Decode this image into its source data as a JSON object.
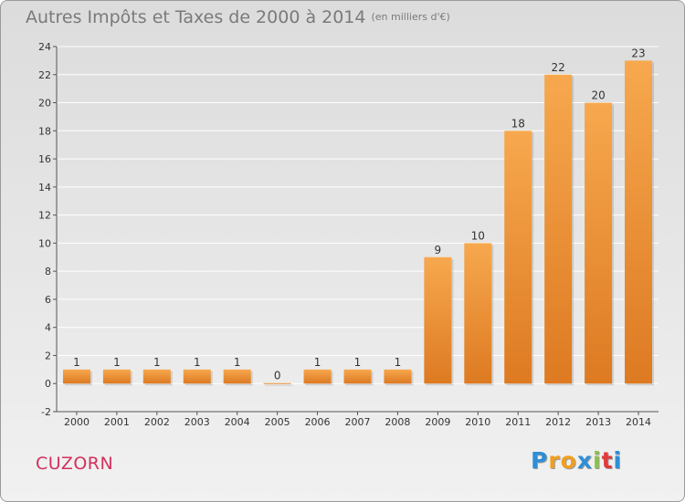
{
  "title": "Autres Impôts et Taxes de 2000 à 2014",
  "title_unit": "(en milliers d'€)",
  "commune": "CUZORN",
  "logo": {
    "letters": [
      "P",
      "r",
      "o",
      "x",
      "i",
      "t",
      "i"
    ],
    "colors": [
      "#2e8fd6",
      "#f0a01e",
      "#f0a01e",
      "#2e8fd6",
      "#8bc34a",
      "#e03a3a",
      "#2e8fd6"
    ]
  },
  "colors": {
    "bar_light": "#f7a84e",
    "bar_dark": "#dd7a22",
    "grid": "#ffffff",
    "axis": "#555555"
  },
  "chart_data": {
    "type": "bar",
    "title": "Autres Impôts et Taxes de 2000 à 2014",
    "subtitle": "(en milliers d'€)",
    "categories": [
      "2000",
      "2001",
      "2002",
      "2003",
      "2004",
      "2005",
      "2006",
      "2007",
      "2008",
      "2009",
      "2010",
      "2011",
      "2012",
      "2013",
      "2014"
    ],
    "values": [
      1,
      1,
      1,
      1,
      1,
      0,
      1,
      1,
      1,
      9,
      10,
      18,
      22,
      20,
      23
    ],
    "ylim": [
      -2,
      24
    ],
    "yticks": [
      -2,
      0,
      2,
      4,
      6,
      8,
      10,
      12,
      14,
      16,
      18,
      20,
      22,
      24
    ],
    "grid": true,
    "legend": "none"
  }
}
